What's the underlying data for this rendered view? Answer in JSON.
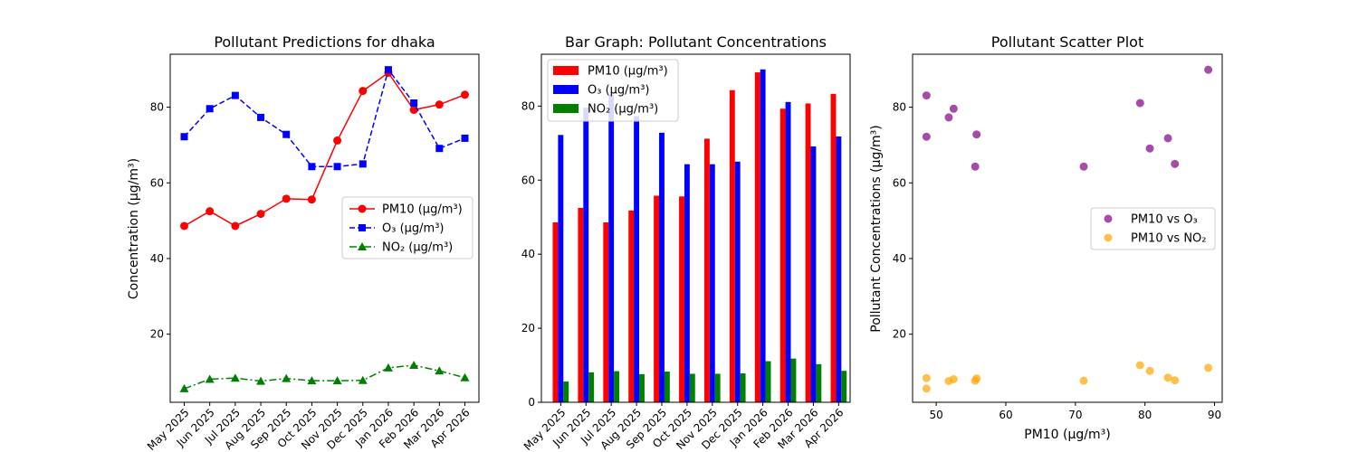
{
  "colors": {
    "pm10": "#ff0000",
    "o3": "#0000ff",
    "no2": "#008000",
    "scatter_o3": "#800080",
    "scatter_no2": "#ffa500"
  },
  "chart_data": [
    {
      "type": "line",
      "title": "Pollutant Predictions for dhaka",
      "xlabel": "",
      "ylabel": "Concentration (μg/m³)",
      "x": [
        "May 2025",
        "Jun 2025",
        "Jul 2025",
        "Aug 2025",
        "Sep 2025",
        "Oct 2025",
        "Nov 2025",
        "Dec 2025",
        "Jan 2026",
        "Feb 2026",
        "Mar 2026",
        "Apr 2026"
      ],
      "yticks": [
        20,
        40,
        60,
        80
      ],
      "ylim": [
        2,
        94
      ],
      "legend_position": "center-right",
      "grid": false,
      "series": [
        {
          "name": "PM10 (μg/m³)",
          "values": [
            48.6,
            52.5,
            48.6,
            51.8,
            55.8,
            55.6,
            71.2,
            84.3,
            89.1,
            79.3,
            80.7,
            83.3
          ],
          "line_style": "solid",
          "marker": "circle"
        },
        {
          "name": "O₃ (μg/m³)",
          "values": [
            72.2,
            79.6,
            83.1,
            77.3,
            72.8,
            64.3,
            64.3,
            65.0,
            89.9,
            81.1,
            69.1,
            71.8
          ],
          "line_style": "dashed",
          "marker": "square"
        },
        {
          "name": "NO₂ (μg/m³)",
          "values": [
            5.6,
            8.1,
            8.4,
            7.6,
            8.3,
            7.7,
            7.7,
            7.8,
            11.1,
            11.8,
            10.3,
            8.5
          ],
          "line_style": "dashdot",
          "marker": "triangle"
        }
      ]
    },
    {
      "type": "bar",
      "title": "Bar Graph: Pollutant Concentrations",
      "xlabel": "",
      "ylabel": "",
      "categories": [
        "May 2025",
        "Jun 2025",
        "Jul 2025",
        "Aug 2025",
        "Sep 2025",
        "Oct 2025",
        "Nov 2025",
        "Dec 2025",
        "Jan 2026",
        "Feb 2026",
        "Mar 2026",
        "Apr 2026"
      ],
      "yticks": [
        0,
        20,
        40,
        60,
        80
      ],
      "ylim": [
        0,
        94
      ],
      "legend_position": "top-left",
      "grid": false,
      "series": [
        {
          "name": "PM10 (μg/m³)",
          "values": [
            48.6,
            52.5,
            48.6,
            51.8,
            55.8,
            55.6,
            71.2,
            84.3,
            89.1,
            79.3,
            80.7,
            83.3
          ]
        },
        {
          "name": "O₃ (μg/m³)",
          "values": [
            72.2,
            79.6,
            83.1,
            77.3,
            72.8,
            64.3,
            64.3,
            65.0,
            89.9,
            81.1,
            69.1,
            71.8
          ]
        },
        {
          "name": "NO₂ (μg/m³)",
          "values": [
            5.6,
            8.1,
            8.4,
            7.6,
            8.3,
            7.7,
            7.7,
            7.8,
            11.1,
            11.8,
            10.3,
            8.5
          ]
        }
      ]
    },
    {
      "type": "scatter",
      "title": "Pollutant Scatter Plot",
      "xlabel": "PM10 (μg/m³)",
      "ylabel": "Pollutant Concentrations (μg/m³)",
      "xticks": [
        50,
        60,
        70,
        80,
        90
      ],
      "yticks": [
        20,
        40,
        60,
        80
      ],
      "xlim": [
        46.6,
        91.1
      ],
      "ylim": [
        2,
        94
      ],
      "legend_position": "center-right",
      "grid": false,
      "series": [
        {
          "name": "PM10 vs O₃",
          "x": [
            48.6,
            52.5,
            48.6,
            51.8,
            55.8,
            55.6,
            71.2,
            84.3,
            89.1,
            79.3,
            80.7,
            83.3
          ],
          "y": [
            72.2,
            79.6,
            83.1,
            77.3,
            72.8,
            64.3,
            64.3,
            65.0,
            89.9,
            81.1,
            69.1,
            71.8
          ]
        },
        {
          "name": "PM10 vs NO₂",
          "x": [
            48.6,
            52.5,
            48.6,
            51.8,
            55.8,
            55.6,
            71.2,
            84.3,
            89.1,
            79.3,
            80.7,
            83.3
          ],
          "y": [
            5.6,
            8.1,
            8.4,
            7.6,
            8.3,
            7.7,
            7.7,
            7.8,
            11.1,
            11.8,
            10.3,
            8.5
          ]
        }
      ]
    }
  ]
}
